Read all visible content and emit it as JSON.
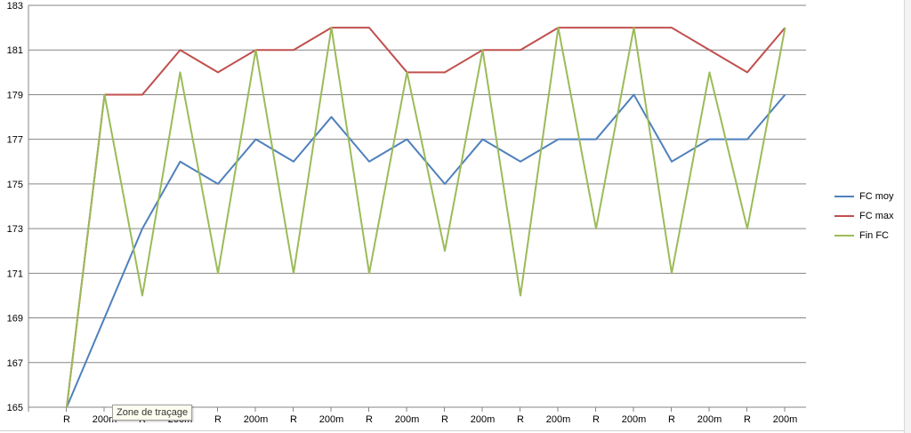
{
  "chart_data": {
    "type": "line",
    "categories": [
      "R",
      "200m",
      "R",
      "200m",
      "R",
      "200m",
      "R",
      "200m",
      "R",
      "200m",
      "R",
      "200m",
      "R",
      "200m",
      "R",
      "200m",
      "R",
      "200m",
      "R",
      "200m"
    ],
    "ylim": [
      165,
      183
    ],
    "yticks": [
      165,
      167,
      169,
      171,
      173,
      175,
      177,
      179,
      181,
      183
    ],
    "grid": true,
    "legend_position": "right",
    "series": [
      {
        "name": "FC moy",
        "color": "#4f81bd",
        "values": [
          165,
          169,
          173,
          176,
          175,
          177,
          176,
          178,
          176,
          177,
          175,
          177,
          176,
          177,
          177,
          179,
          176,
          177,
          177,
          179
        ]
      },
      {
        "name": "FC max",
        "color": "#c0504d",
        "values": [
          165,
          179,
          179,
          181,
          180,
          181,
          181,
          182,
          182,
          180,
          180,
          181,
          181,
          182,
          182,
          182,
          182,
          181,
          180,
          182
        ]
      },
      {
        "name": "Fin FC",
        "color": "#9bbb59",
        "values": [
          165,
          179,
          170,
          180,
          171,
          181,
          171,
          182,
          171,
          180,
          172,
          181,
          170,
          182,
          173,
          182,
          171,
          180,
          173,
          182
        ]
      }
    ]
  },
  "tooltip": {
    "text": "Zone de traçage"
  }
}
